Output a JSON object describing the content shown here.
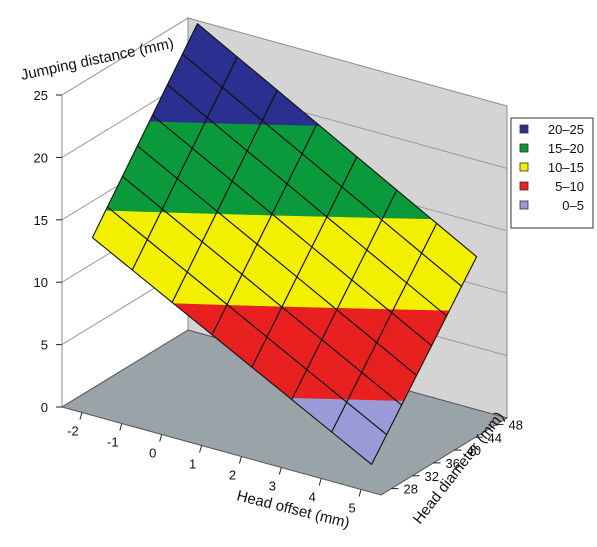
{
  "chart_data": {
    "type": "surface",
    "zlabel": "Jumping distance (mm)",
    "xlabel": "Head offset (mm)",
    "ylabel": "Head diameter (mm)",
    "z_ticks": [
      "0",
      "5",
      "10",
      "15",
      "20",
      "25"
    ],
    "x_ticks": [
      "-2",
      "-1",
      "0",
      "1",
      "2",
      "3",
      "4",
      "5"
    ],
    "y_ticks": [
      "28",
      "32",
      "36",
      "40",
      "44",
      "48"
    ],
    "zlim": [
      0,
      25
    ],
    "xlim": [
      -2.5,
      5.5
    ],
    "ylim": [
      26,
      50
    ],
    "grid": true,
    "legend_position": "right",
    "legend": [
      {
        "label": "20–25",
        "color": "#2b2f8f"
      },
      {
        "label": "15–20",
        "color": "#0a9a3c"
      },
      {
        "label": "10–15",
        "color": "#f2ef00"
      },
      {
        "label": "5–10",
        "color": "#e82020"
      },
      {
        "label": "0–5",
        "color": "#9a9ad8"
      }
    ],
    "surface": {
      "x": [
        -2,
        5
      ],
      "y": [
        28,
        48
      ],
      "z_corners": {
        "x_min_y_min": 13.5,
        "x_max_y_min": 1.5,
        "x_min_y_max": 25.5,
        "x_max_y_max": 13.0
      },
      "grid_divisions": 7
    }
  }
}
